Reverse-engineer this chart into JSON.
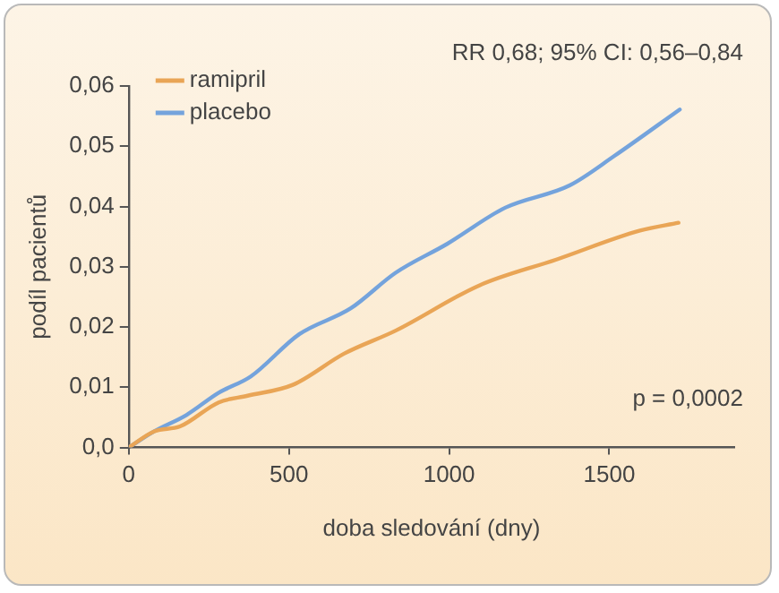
{
  "chart_data": {
    "type": "line",
    "xlabel": "doba sledování (dny)",
    "ylabel": "podíl pacientů",
    "xlim": [
      0,
      1890
    ],
    "xticks": [
      0,
      500,
      1000,
      1500
    ],
    "ylim": [
      0,
      0.06
    ],
    "yticks": [
      {
        "value": 0,
        "label": "0,0"
      },
      {
        "value": 0.01,
        "label": "0,01"
      },
      {
        "value": 0.02,
        "label": "0,02"
      },
      {
        "value": 0.03,
        "label": "0,03"
      },
      {
        "value": 0.04,
        "label": "0,04"
      },
      {
        "value": 0.05,
        "label": "0,05"
      },
      {
        "value": 0.06,
        "label": "0,06"
      }
    ],
    "grid": false,
    "legend": "top left",
    "line_style": "solid",
    "marker": "none",
    "annotations": [
      "RR 0,68; 95% CI: 0,56–0,84",
      "p = 0,0002"
    ],
    "series": [
      {
        "name": "ramipril",
        "color": "#e9a556",
        "x": [
          0,
          80,
          160,
          281,
          371,
          512,
          673,
          833,
          1094,
          1335,
          1596,
          1716
        ],
        "values": [
          0,
          0.0027,
          0.0035,
          0.0075,
          0.0086,
          0.0104,
          0.0156,
          0.0194,
          0.0269,
          0.0312,
          0.036,
          0.0373
        ]
      },
      {
        "name": "placebo",
        "color": "#74a3dc",
        "x": [
          0,
          80,
          180,
          281,
          381,
          532,
          693,
          833,
          994,
          1175,
          1376,
          1516,
          1720
        ],
        "values": [
          0,
          0.0027,
          0.0054,
          0.0091,
          0.0118,
          0.0188,
          0.0231,
          0.029,
          0.0338,
          0.0398,
          0.0435,
          0.0484,
          0.0561
        ]
      }
    ]
  }
}
